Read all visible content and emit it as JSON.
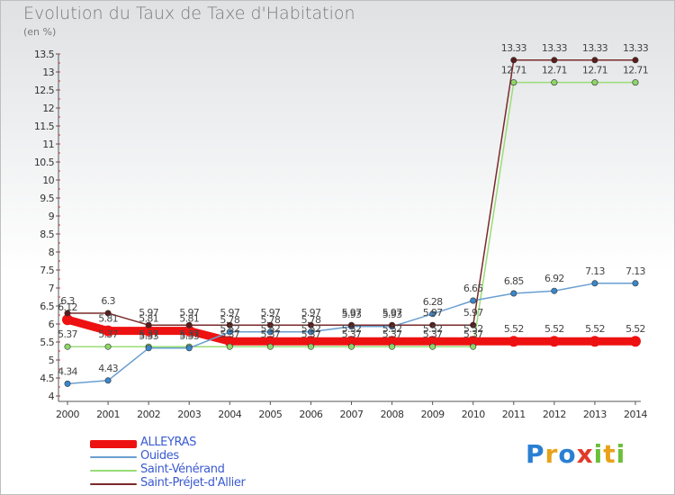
{
  "title": "Evolution du Taux de Taxe d'Habitation",
  "unit_label": "(en %)",
  "logo": {
    "letters": [
      "P",
      "r",
      "o",
      "x",
      "i",
      "t",
      "i"
    ],
    "colors": [
      "#2a7fd4",
      "#e8a21a",
      "#2a7fd4",
      "#e23a2a",
      "#6bbf3a",
      "#e8a21a",
      "#6bbf3a"
    ]
  },
  "chart_data": {
    "type": "line",
    "x": [
      2000,
      2001,
      2002,
      2003,
      2004,
      2005,
      2006,
      2007,
      2008,
      2009,
      2010,
      2011,
      2012,
      2013,
      2014
    ],
    "ylim": [
      4,
      13.5
    ],
    "yticks": [
      4,
      4.5,
      5,
      5.5,
      6,
      6.5,
      7,
      7.5,
      8,
      8.5,
      9,
      9.5,
      10,
      10.5,
      11,
      11.5,
      12,
      12.5,
      13,
      13.5
    ],
    "grid": false,
    "legend_placement": "bottom-left",
    "series": [
      {
        "name": "ALLEYRAS",
        "color": "#ee1111",
        "width": 9,
        "values": [
          6.12,
          5.81,
          5.81,
          5.81,
          5.52,
          5.52,
          5.52,
          5.52,
          5.52,
          5.52,
          5.52,
          5.52,
          5.52,
          5.52,
          5.52
        ],
        "labels": [
          "6.12",
          "5.81",
          "5.81",
          "5.81",
          "5.52",
          "5.52",
          "5.52",
          "5.52",
          "5.52",
          "5.52",
          "5.52",
          "5.52",
          "5.52",
          "5.52",
          "5.52"
        ]
      },
      {
        "name": "Ouides",
        "color": "#6a9fd0",
        "width": 1.5,
        "values": [
          4.34,
          4.43,
          5.33,
          5.33,
          5.78,
          5.78,
          5.78,
          5.93,
          5.93,
          6.28,
          6.65,
          6.85,
          6.92,
          7.13,
          7.13
        ],
        "labels": [
          "4.34",
          "4.43",
          "5.33",
          "5.33",
          "5.78",
          "5.78",
          "5.78",
          "5.93",
          "5.93",
          "6.28",
          "6.65",
          "6.85",
          "6.92",
          "7.13",
          "7.13"
        ]
      },
      {
        "name": "Saint-Vénérand",
        "color": "#99dd77",
        "width": 1.5,
        "values": [
          5.37,
          5.37,
          5.37,
          5.37,
          5.37,
          5.37,
          5.37,
          5.37,
          5.37,
          5.37,
          5.37,
          12.71,
          12.71,
          12.71,
          12.71
        ],
        "labels": [
          "5.37",
          "5.37",
          "5.37",
          "5.37",
          "5.37",
          "5.37",
          "5.37",
          "5.37",
          "5.37",
          "5.37",
          "5.37",
          "12.71",
          "12.71",
          "12.71",
          "12.71"
        ]
      },
      {
        "name": "Saint-Préjet-d'Allier",
        "color": "#7a2a2a",
        "width": 1.5,
        "values": [
          6.3,
          6.3,
          5.97,
          5.97,
          5.97,
          5.97,
          5.97,
          5.97,
          5.97,
          5.97,
          5.97,
          13.33,
          13.33,
          13.33,
          13.33
        ],
        "labels": [
          "6.3",
          "6.3",
          "5.97",
          "5.97",
          "5.97",
          "5.97",
          "5.97",
          "5.97",
          "5.97",
          "5.97",
          "5.97",
          "13.33",
          "13.33",
          "13.33",
          "13.33"
        ]
      }
    ]
  }
}
